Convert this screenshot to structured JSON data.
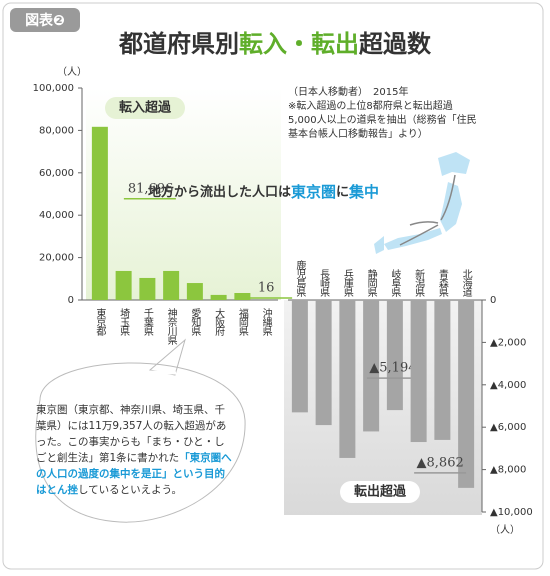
{
  "badge": "図表❷",
  "title_parts": [
    "都道府県別",
    "転入・転出",
    "超過数"
  ],
  "note_lines": [
    "（日本人移動者）　2015年",
    "※転入超過の上位8都府県と転出超過",
    "5,000人以上の道県を抽出（総務省「住民",
    "基本台帳人口移動報告」より）"
  ],
  "map_caption_parts": [
    "地方から流出した人口は",
    "東京圏",
    "に",
    "集中"
  ],
  "bubble_parts": [
    "東京圏（東京都、神奈川県、埼玉県、千葉県）には11万9,357人の転入超過があった。この事実からも「まち・ひと・しごと創生法」第1条に書かれた",
    "「東京圏への人口の過度の集中を是正」という目的はとん挫",
    "しているといえよう。"
  ],
  "chart_data": [
    {
      "type": "bar",
      "label": "転入超過",
      "unit": "（人）",
      "color": "#8cc63e",
      "categories": [
        "東京都",
        "埼玉県",
        "千葉県",
        "神奈川県",
        "愛知県",
        "大阪府",
        "福岡県",
        "沖縄県"
      ],
      "values": [
        81696,
        13700,
        10400,
        13700,
        8000,
        2400,
        3300,
        16
      ],
      "value_labels": [
        "81,696",
        null,
        null,
        null,
        null,
        null,
        null,
        "16"
      ],
      "ylim": [
        0,
        100000
      ],
      "yticks": [
        0,
        {
          "value": 20000,
          "label": "20,000"
        },
        {
          "value": 40000,
          "label": "40,000"
        },
        {
          "value": 60000,
          "label": "60,000"
        },
        {
          "value": 80000,
          "label": "80,000"
        },
        {
          "value": 100000,
          "label": "100,000"
        }
      ]
    },
    {
      "type": "bar",
      "label": "転出超過",
      "unit": "（人）",
      "color": "#a5a5a5",
      "categories": [
        "鹿児島県",
        "長崎県",
        "兵庫県",
        "静岡県",
        "岐阜県",
        "新潟県",
        "青森県",
        "北海道"
      ],
      "values": [
        -5300,
        -5900,
        -7450,
        -6200,
        -5194,
        -6700,
        -6600,
        -8862
      ],
      "value_labels": [
        null,
        null,
        null,
        null,
        "▲5,194",
        null,
        null,
        "▲8,862"
      ],
      "ylim": [
        -10000,
        0
      ],
      "yticks": [
        0,
        {
          "value": -2000,
          "label": "▲2,000"
        },
        {
          "value": -4000,
          "label": "▲4,000"
        },
        {
          "value": -6000,
          "label": "▲6,000"
        },
        {
          "value": -8000,
          "label": "▲8,000"
        },
        {
          "value": -10000,
          "label": "▲10,000"
        }
      ]
    }
  ]
}
